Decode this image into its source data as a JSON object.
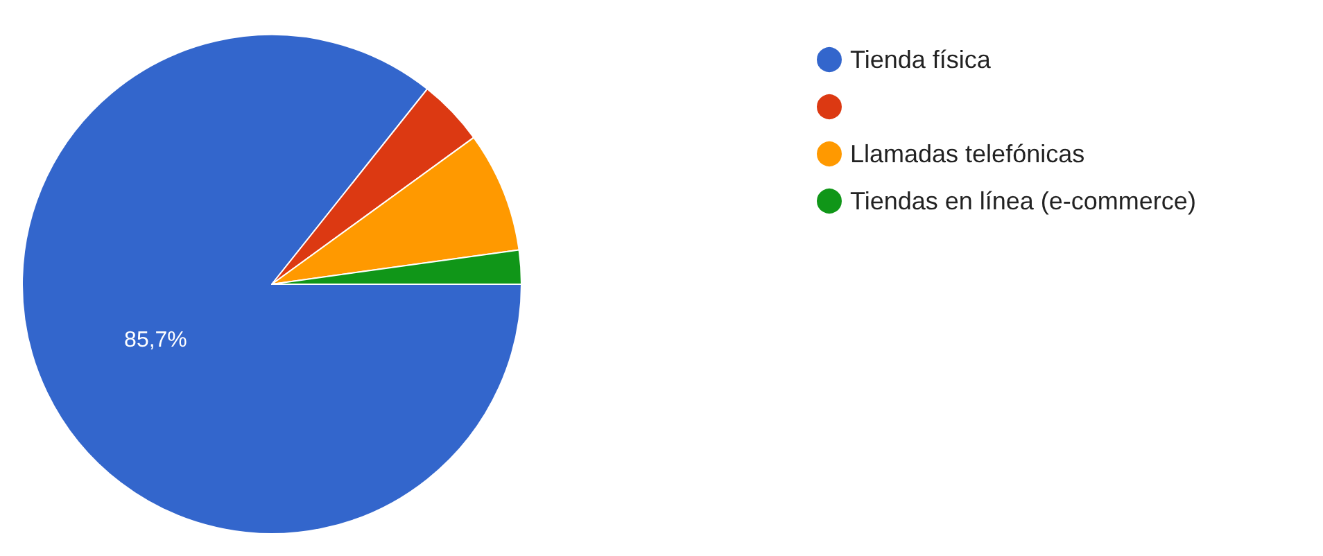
{
  "chart_data": {
    "type": "pie",
    "categories": [
      "Tienda física",
      null,
      "Llamadas telefónicas",
      "Tiendas en línea (e-commerce)"
    ],
    "values": [
      85.7,
      4.3,
      7.8,
      2.2
    ],
    "colors": [
      "#3366cc",
      "#dc3912",
      "#ff9900",
      "#109618"
    ],
    "value_labels": [
      "85,7%",
      null,
      null,
      null
    ],
    "legend": "top right"
  }
}
